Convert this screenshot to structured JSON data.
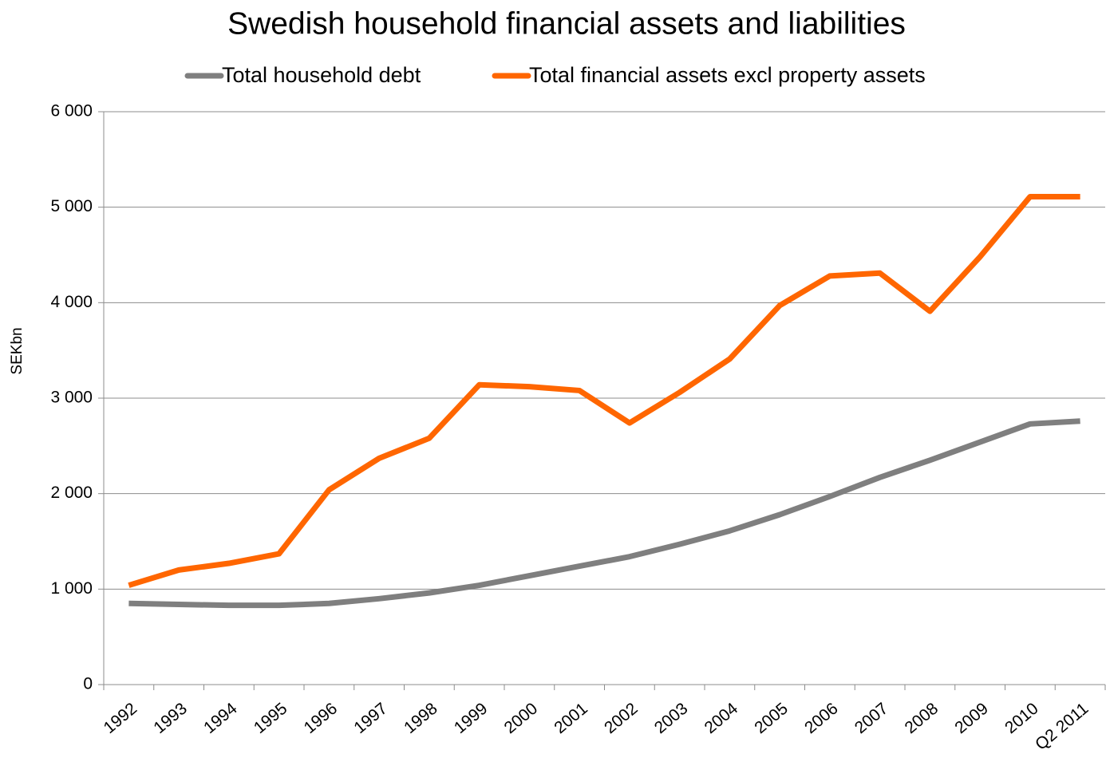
{
  "chart_data": {
    "type": "line",
    "title": "Swedish household financial assets and liabilities",
    "y_label": "SEKbn",
    "categories": [
      "1992",
      "1993",
      "1994",
      "1995",
      "1996",
      "1997",
      "1998",
      "1999",
      "2000",
      "2001",
      "2002",
      "2003",
      "2004",
      "2005",
      "2006",
      "2007",
      "2008",
      "2009",
      "2010",
      "Q2 2011"
    ],
    "series": [
      {
        "name": "Total household debt",
        "color": "#7f7f7f",
        "values": [
          850,
          840,
          830,
          830,
          850,
          900,
          960,
          1040,
          1140,
          1240,
          1340,
          1470,
          1610,
          1780,
          1970,
          2170,
          2350,
          2540,
          2730,
          2760
        ]
      },
      {
        "name": "Total financial assets excl property assets",
        "color": "#ff6600",
        "values": [
          1040,
          1200,
          1270,
          1370,
          2040,
          2370,
          2580,
          3140,
          3120,
          3080,
          2740,
          3060,
          3410,
          3970,
          4280,
          4310,
          3910,
          4480,
          5110,
          5110
        ]
      }
    ],
    "ylim": [
      0,
      6000
    ],
    "yticks": [
      0,
      {
        "value": 1000,
        "label": "1 000"
      },
      {
        "value": 2000,
        "label": "2 000"
      },
      {
        "value": 3000,
        "label": "3 000"
      },
      {
        "value": 4000,
        "label": "4 000"
      },
      {
        "value": 5000,
        "label": "5 000"
      },
      {
        "value": 6000,
        "label": "6 000"
      }
    ],
    "grid": true,
    "legend": "top"
  }
}
